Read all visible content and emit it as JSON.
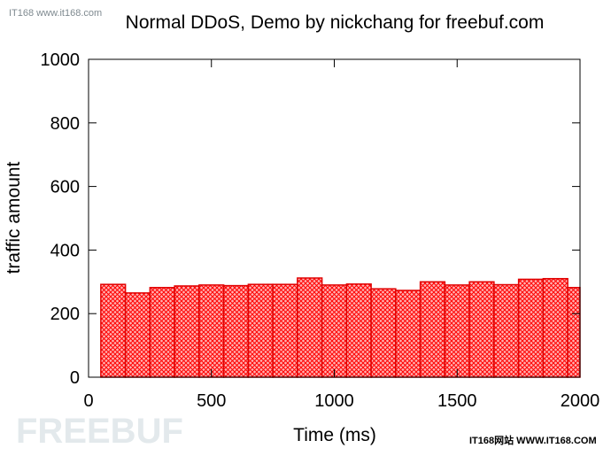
{
  "watermarks": {
    "top_left": "IT168 www.it168.com",
    "bottom_left": "FREEBUF",
    "bottom_right": "IT168网站 WWW.IT168.COM"
  },
  "colors": {
    "bar_fill": "#ff9d9d",
    "bar_hatch": "#ff0000",
    "bar_edge": "#e00000",
    "axis": "#000000",
    "text": "#000000",
    "watermark": "#dfe6ea"
  },
  "chart_data": {
    "type": "bar",
    "title": "Normal DDoS, Demo by nickchang for freebuf.com",
    "xlabel": "Time (ms)",
    "ylabel": "traffic amount",
    "xlim": [
      0,
      2000
    ],
    "ylim": [
      0,
      1000
    ],
    "xticks": [
      "0",
      "500",
      "1000",
      "1500",
      "2000"
    ],
    "yticks": [
      "0",
      "200",
      "400",
      "600",
      "800",
      "1000"
    ],
    "bar_width": 100,
    "grid": false,
    "legend": "none",
    "pattern": "crosshatch",
    "x": [
      100,
      200,
      300,
      400,
      500,
      600,
      700,
      800,
      900,
      1000,
      1100,
      1200,
      1300,
      1400,
      1500,
      1600,
      1700,
      1800,
      1900,
      2000
    ],
    "values": [
      292,
      265,
      282,
      287,
      290,
      288,
      292,
      292,
      312,
      290,
      293,
      278,
      273,
      300,
      290,
      300,
      291,
      308,
      310,
      282
    ]
  }
}
